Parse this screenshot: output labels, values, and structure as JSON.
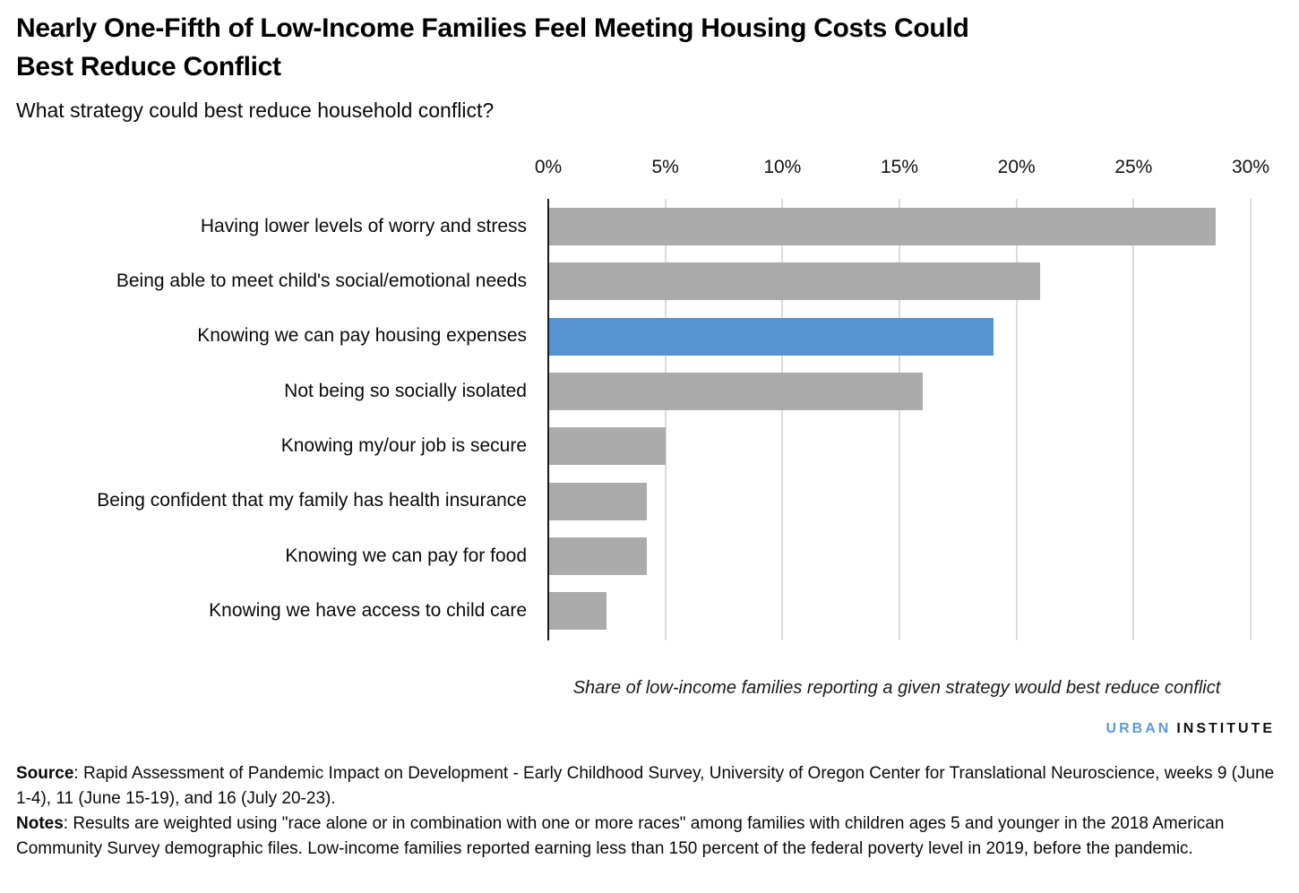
{
  "header": {
    "title_line1": "Nearly One-Fifth of Low-Income Families Feel Meeting Housing Costs Could",
    "title_line2": "Best Reduce Conflict",
    "subtitle": "What strategy could best reduce household conflict?"
  },
  "chart_data": {
    "type": "bar",
    "orientation": "horizontal",
    "title": "Nearly One-Fifth of Low-Income Families Feel Meeting Housing Costs Could Best Reduce Conflict",
    "subtitle": "What strategy could best reduce household conflict?",
    "categories": [
      "Having lower levels of worry and stress",
      "Being able to meet child's social/emotional needs",
      "Knowing we can pay housing expenses",
      "Not being so socially isolated",
      "Knowing my/our job is secure",
      "Being confident that my family has health insurance",
      "Knowing we can pay for food",
      "Knowing we have access to child care"
    ],
    "values": [
      28.5,
      21,
      19,
      16,
      5,
      4.2,
      4.2,
      2.5
    ],
    "unit": "percent",
    "highlight_index": 2,
    "bar_color_default": "#ababab",
    "bar_color_highlight": "#5793d2",
    "gridline_color": "#dcdcdc",
    "axis_color": "#1a1a1a",
    "xlim": [
      0,
      30
    ],
    "x_tick_values": [
      0,
      5,
      10,
      15,
      20,
      25,
      30
    ],
    "x_tick_labels": [
      "0%",
      "5%",
      "10%",
      "15%",
      "20%",
      "25%",
      "30%"
    ],
    "x_axis_position": "top",
    "grid": true,
    "legend": false,
    "caption": "Share of low-income families reporting a given strategy would best reduce conflict"
  },
  "branding": {
    "logo_part1": "URBAN",
    "logo_part2": "INSTITUTE",
    "logo_color1": "#5b9bd5",
    "logo_color2": "#0f0f0f"
  },
  "footer": {
    "source_label": "Source",
    "source_text": ": Rapid Assessment of Pandemic Impact on Development - Early Childhood Survey, University of Oregon Center for Translational Neuroscience, weeks 9 (June 1-4), 11 (June 15-19), and 16 (July 20-23).",
    "notes_label": "Notes",
    "notes_text": ": Results are weighted using \"race alone or in combination with one or more races\" among families with children ages 5 and younger in the 2018 American Community Survey demographic files. Low-income families reported earning less than 150 percent of the federal poverty level in 2019, before the pandemic."
  }
}
